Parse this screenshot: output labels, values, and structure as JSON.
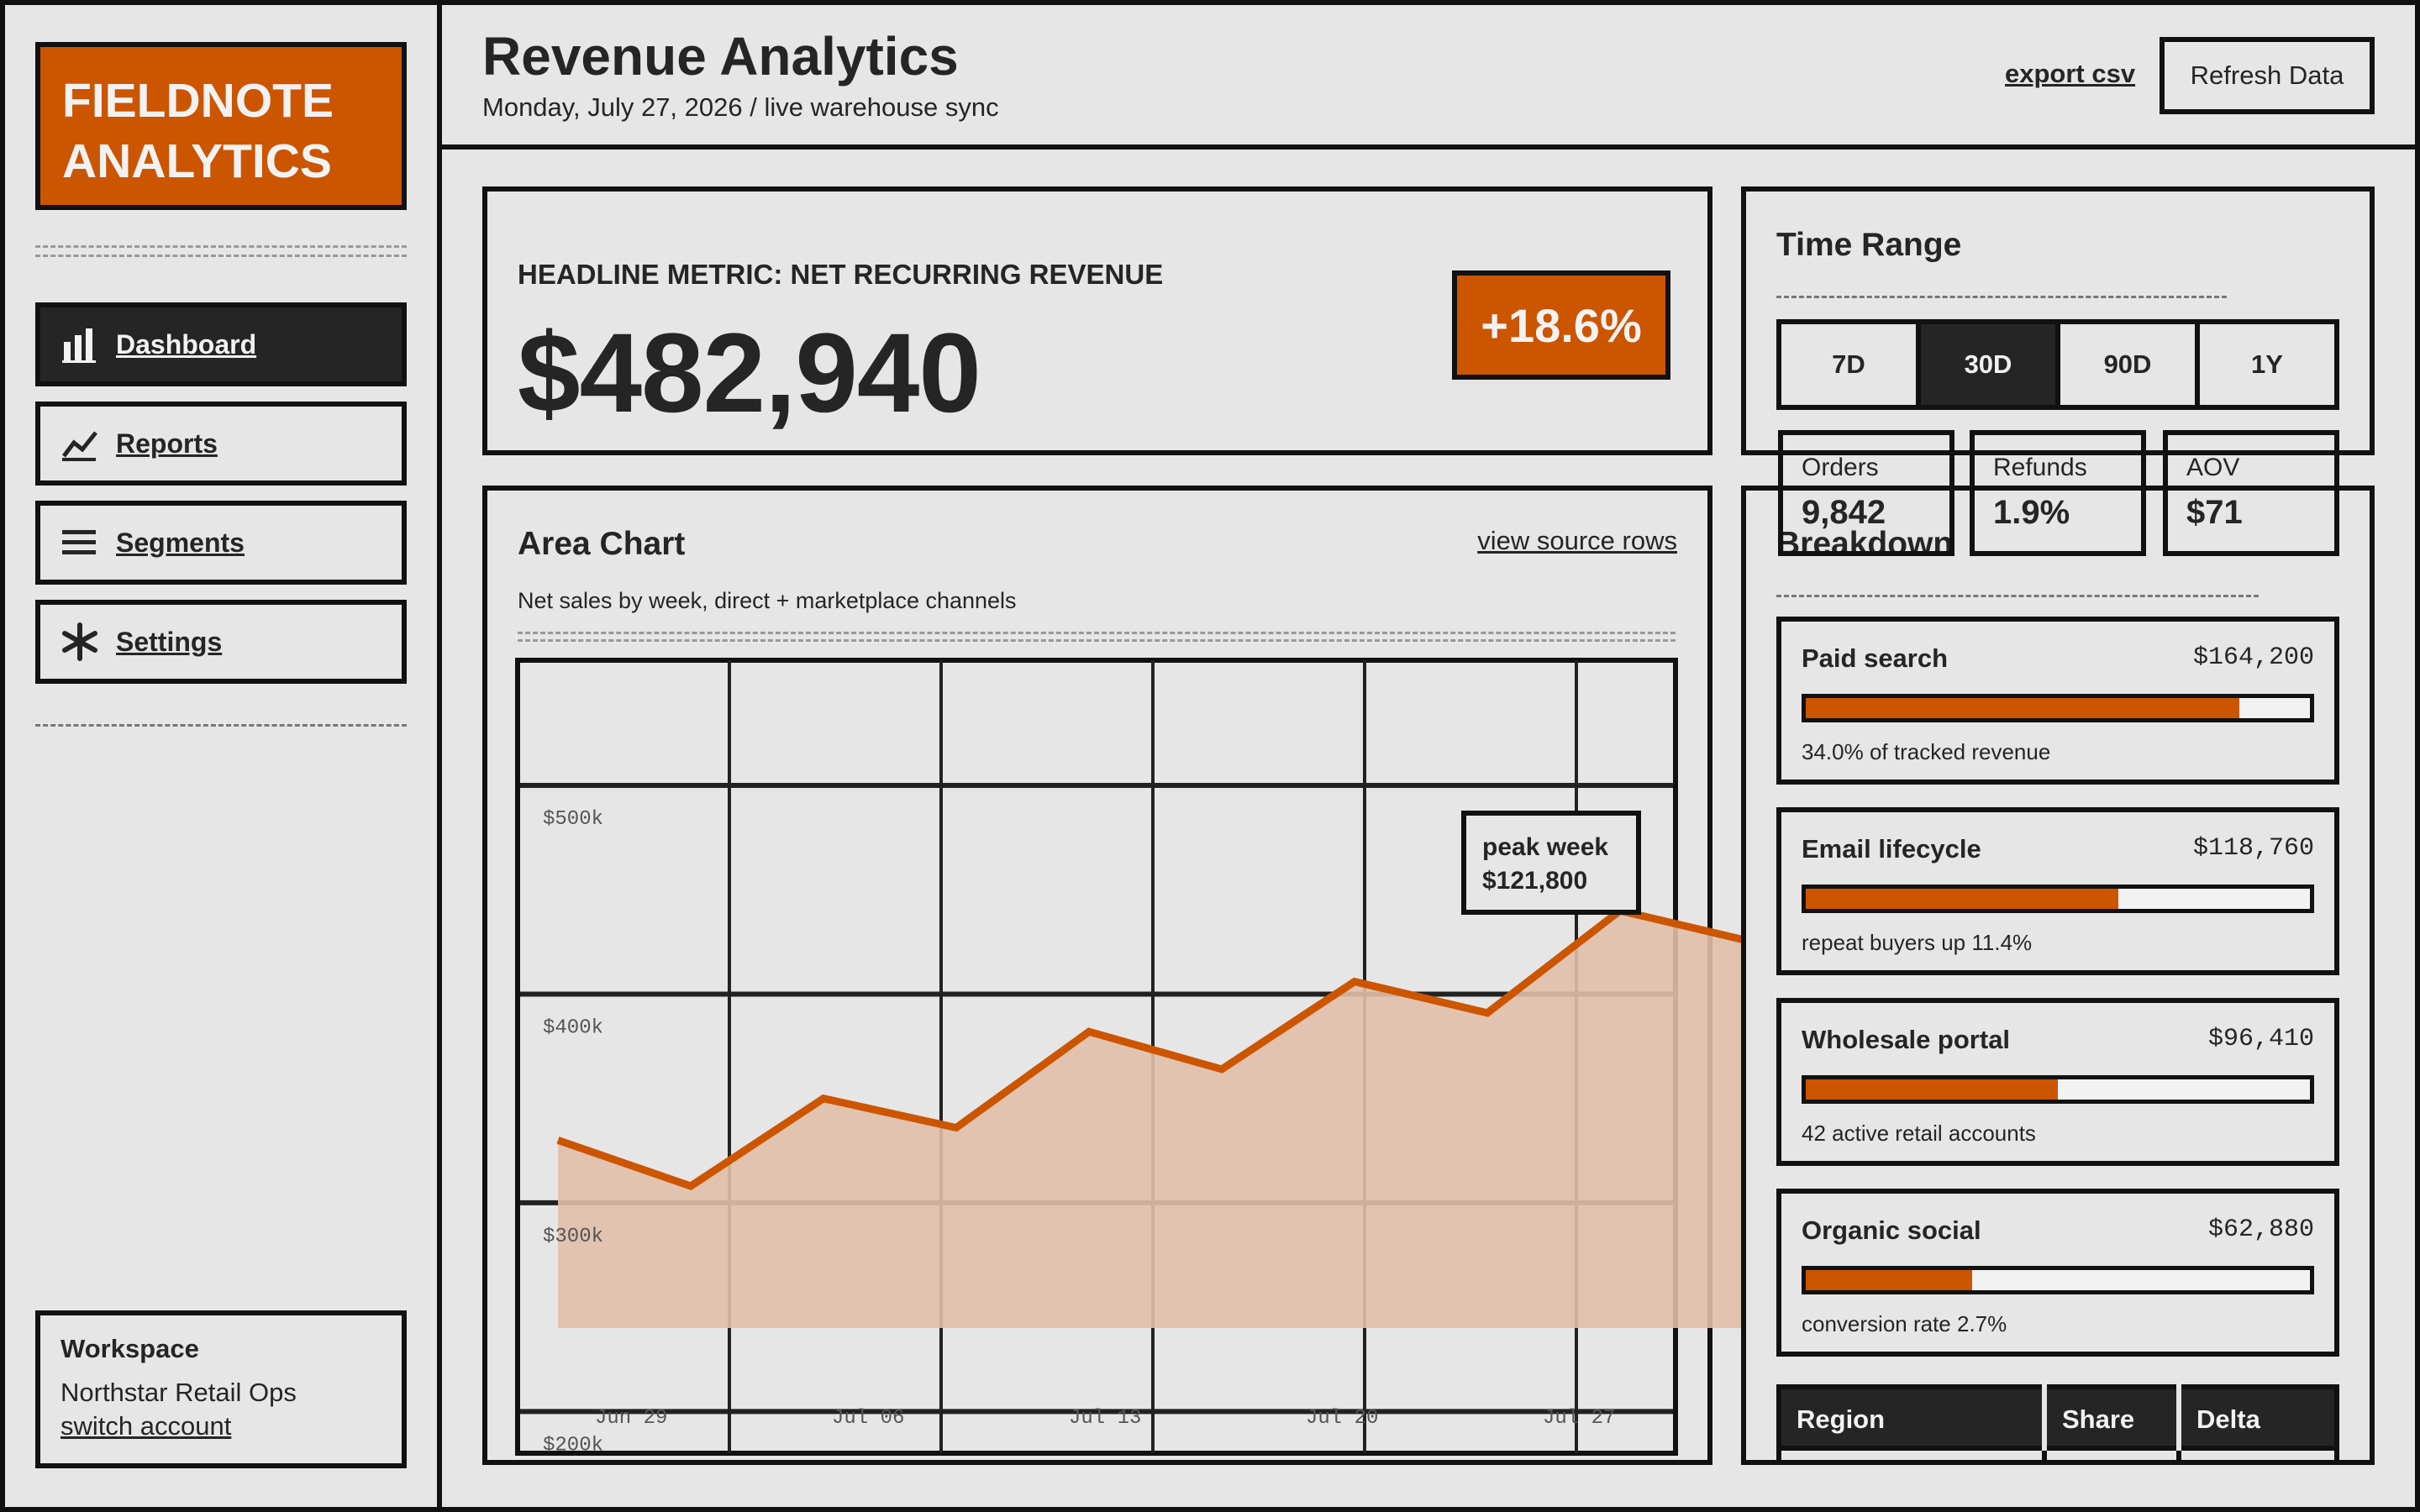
{
  "brand": {
    "line1": "FIELDNOTE",
    "line2": "ANALYTICS",
    "color": "#cc5500"
  },
  "nav": {
    "items": [
      {
        "label": "Dashboard",
        "icon": "bar-chart-icon",
        "active": true
      },
      {
        "label": "Reports",
        "icon": "line-chart-icon",
        "active": false
      },
      {
        "label": "Segments",
        "icon": "menu-lines-icon",
        "active": false
      },
      {
        "label": "Settings",
        "icon": "asterisk-icon",
        "active": false
      }
    ]
  },
  "workspace": {
    "title": "Workspace",
    "name": "Northstar Retail Ops",
    "switch_label": "switch account"
  },
  "header": {
    "title": "Revenue Analytics",
    "subtitle": "Monday, July 27, 2026 / live warehouse sync",
    "export_label": "export csv",
    "refresh_label": "Refresh Data"
  },
  "headline": {
    "label": "HEADLINE METRIC: NET RECURRING REVENUE",
    "value": "$482,940",
    "delta": "+18.6%"
  },
  "time_range": {
    "title": "Time Range",
    "options": [
      "7D",
      "30D",
      "90D",
      "1Y"
    ],
    "selected": "30D"
  },
  "mini_stats": [
    {
      "label": "Orders",
      "value": "9,842"
    },
    {
      "label": "Refunds",
      "value": "1.9%"
    },
    {
      "label": "AOV",
      "value": "$71"
    }
  ],
  "chart": {
    "title": "Area Chart",
    "subtitle": "Net sales by week, direct + marketplace channels",
    "source_link": "view source rows",
    "tooltip_line1": "peak week",
    "tooltip_line2": "$121,800"
  },
  "chart_data": {
    "type": "area",
    "x_ticks": [
      "Jun 29",
      "Jul 06",
      "Jul 13",
      "Jul 20",
      "Jul 27"
    ],
    "y_ticks": [
      "$500k",
      "$400k",
      "$300k",
      "$200k"
    ],
    "y_tick_values": [
      500,
      400,
      300,
      200
    ],
    "ylim": [
      180,
      560
    ],
    "values": [
      330,
      308,
      350,
      336,
      382,
      364,
      406,
      391,
      440,
      425
    ],
    "grid": true,
    "line_color": "#cc5500",
    "fill_color": "#e0bfa8"
  },
  "breakdown": {
    "title": "Breakdown",
    "items": [
      {
        "name": "Paid search",
        "amount": "$164,200",
        "share": 0.86,
        "note": "34.0% of tracked revenue"
      },
      {
        "name": "Email lifecycle",
        "amount": "$118,760",
        "share": 0.62,
        "note": "repeat buyers up 11.4%"
      },
      {
        "name": "Wholesale portal",
        "amount": "$96,410",
        "share": 0.5,
        "note": "42 active retail accounts"
      },
      {
        "name": "Organic social",
        "amount": "$62,880",
        "share": 0.33,
        "note": "conversion rate 2.7%"
      }
    ]
  },
  "region_table": {
    "headers": [
      "Region",
      "Share",
      "Delta"
    ]
  }
}
